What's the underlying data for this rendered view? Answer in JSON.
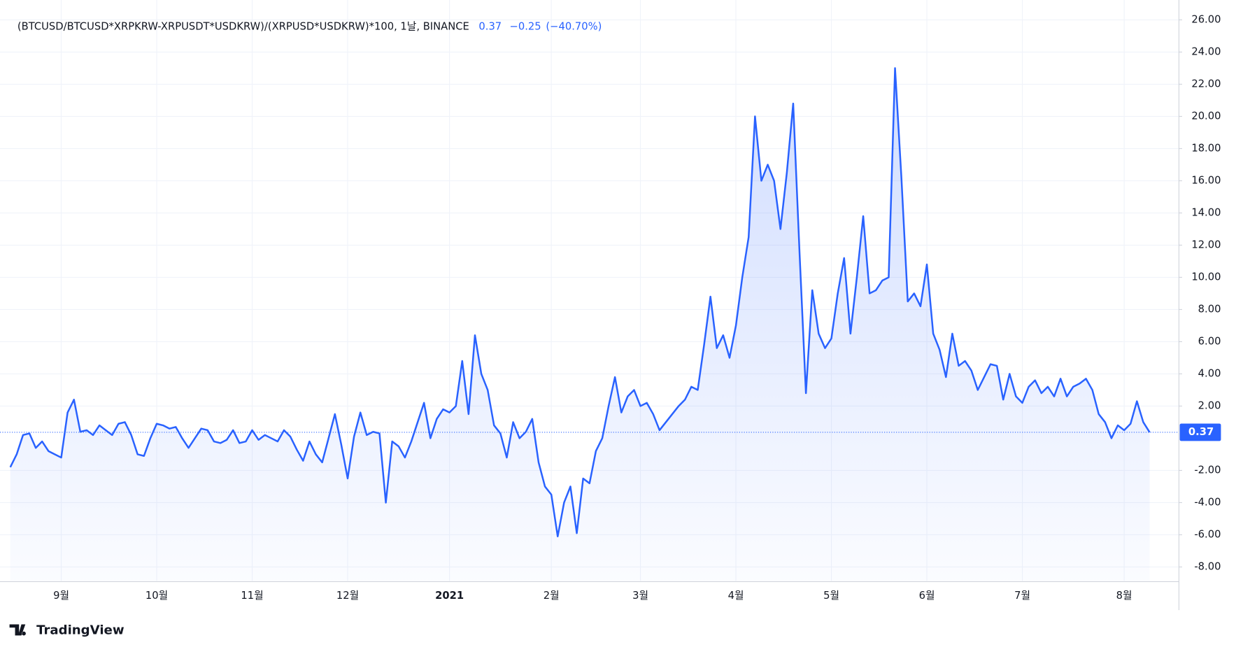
{
  "chart_data": {
    "type": "line",
    "title": "(BTCUSD/BTCUSD*XRPKRW-XRPUSDT*USDKRW)/(XRPUSD*USDKRW)*100, 1날, BINANCE",
    "last": 0.37,
    "change": {
      "value": -0.25,
      "label": "−0.25"
    },
    "change_pct": {
      "value": -40.7,
      "label": "(−40.70%)"
    },
    "color": "#2962ff",
    "grid": true,
    "ylim": [
      -8.86,
      26.84
    ],
    "yticks": [
      {
        "value": -8,
        "label": "-8.00"
      },
      {
        "value": -6,
        "label": "-6.00"
      },
      {
        "value": -4,
        "label": "-4.00"
      },
      {
        "value": -2,
        "label": "-2.00"
      },
      {
        "value": 2,
        "label": "2.00"
      },
      {
        "value": 4,
        "label": "4.00"
      },
      {
        "value": 6,
        "label": "6.00"
      },
      {
        "value": 8,
        "label": "8.00"
      },
      {
        "value": 10,
        "label": "10.00"
      },
      {
        "value": 12,
        "label": "12.00"
      },
      {
        "value": 14,
        "label": "14.00"
      },
      {
        "value": 16,
        "label": "16.00"
      },
      {
        "value": 18,
        "label": "18.00"
      },
      {
        "value": 20,
        "label": "20.00"
      },
      {
        "value": 22,
        "label": "22.00"
      },
      {
        "value": 24,
        "label": "24.00"
      },
      {
        "value": 26,
        "label": "26.00"
      }
    ],
    "categories": [
      null,
      null,
      null,
      null,
      null,
      null,
      null,
      null,
      "9월",
      null,
      null,
      null,
      null,
      null,
      null,
      null,
      null,
      null,
      null,
      null,
      null,
      null,
      null,
      "10월",
      null,
      null,
      null,
      null,
      null,
      null,
      null,
      null,
      null,
      null,
      null,
      null,
      null,
      null,
      "11월",
      null,
      null,
      null,
      null,
      null,
      null,
      null,
      null,
      null,
      null,
      null,
      null,
      null,
      null,
      "12월",
      null,
      null,
      null,
      null,
      null,
      null,
      null,
      null,
      null,
      null,
      null,
      null,
      null,
      null,
      null,
      "2021",
      null,
      null,
      null,
      null,
      null,
      null,
      null,
      null,
      null,
      null,
      null,
      null,
      null,
      null,
      null,
      "2월",
      null,
      null,
      null,
      null,
      null,
      null,
      null,
      null,
      null,
      null,
      null,
      null,
      null,
      "3월",
      null,
      null,
      null,
      null,
      null,
      null,
      null,
      null,
      null,
      null,
      null,
      null,
      null,
      null,
      "4월",
      null,
      null,
      null,
      null,
      null,
      null,
      null,
      null,
      null,
      null,
      null,
      null,
      null,
      null,
      "5월",
      null,
      null,
      null,
      null,
      null,
      null,
      null,
      null,
      null,
      null,
      null,
      null,
      null,
      null,
      "6월",
      null,
      null,
      null,
      null,
      null,
      null,
      null,
      null,
      null,
      null,
      null,
      null,
      null,
      null,
      "7월",
      null,
      null,
      null,
      null,
      null,
      null,
      null,
      null,
      null,
      null,
      null,
      null,
      null,
      null,
      null,
      "8월",
      null,
      null,
      null,
      null
    ],
    "values": [
      -1.8,
      -1.0,
      0.2,
      0.3,
      -0.6,
      -0.2,
      -0.8,
      -1.0,
      -1.2,
      1.6,
      2.4,
      0.4,
      0.5,
      0.2,
      0.8,
      0.5,
      0.2,
      0.9,
      1.0,
      0.2,
      -1.0,
      -1.1,
      0,
      0.9,
      0.8,
      0.6,
      0.7,
      0,
      -0.6,
      0,
      0.6,
      0.5,
      -0.2,
      -0.3,
      -0.1,
      0.5,
      -0.3,
      -0.2,
      0.5,
      -0.1,
      0.2,
      0,
      -0.2,
      0.5,
      0.1,
      -0.7,
      -1.4,
      -0.2,
      -1.0,
      -1.5,
      0,
      1.5,
      -0.4,
      -2.5,
      0.1,
      1.6,
      0.2,
      0.4,
      0.3,
      -4.0,
      -0.2,
      -0.5,
      -1.2,
      -0.2,
      1.0,
      2.2,
      0,
      1.2,
      1.8,
      1.6,
      2.0,
      4.8,
      1.5,
      6.4,
      4.0,
      3.0,
      0.8,
      0.3,
      -1.2,
      1.0,
      0,
      0.4,
      1.2,
      -1.5,
      -3.0,
      -3.5,
      -6.1,
      -4.0,
      -3.0,
      -5.9,
      -2.5,
      -2.8,
      -0.8,
      0,
      2.0,
      3.8,
      1.6,
      2.6,
      3.0,
      2.0,
      2.2,
      1.5,
      0.5,
      1.0,
      1.5,
      2.0,
      2.4,
      3.2,
      3.0,
      5.8,
      8.8,
      5.6,
      6.4,
      5.0,
      7.0,
      10.0,
      12.5,
      20.0,
      16.0,
      17.0,
      16.0,
      13.0,
      16.5,
      20.8,
      11.5,
      2.8,
      9.2,
      6.5,
      5.6,
      6.2,
      9.0,
      11.2,
      6.5,
      10.0,
      13.8,
      9.0,
      9.2,
      9.8,
      10.0,
      23.0,
      16.2,
      8.5,
      9.0,
      8.2,
      10.8,
      6.5,
      5.5,
      3.8,
      6.5,
      4.5,
      4.8,
      4.2,
      3.0,
      3.8,
      4.6,
      4.5,
      2.4,
      4.0,
      2.6,
      2.2,
      3.2,
      3.6,
      2.8,
      3.2,
      2.6,
      3.7,
      2.6,
      3.2,
      3.4,
      3.7,
      3.0,
      1.5,
      1.0,
      0,
      0.8,
      0.5,
      0.9,
      2.3,
      1.0,
      0.37
    ]
  },
  "brand": "TradingView"
}
